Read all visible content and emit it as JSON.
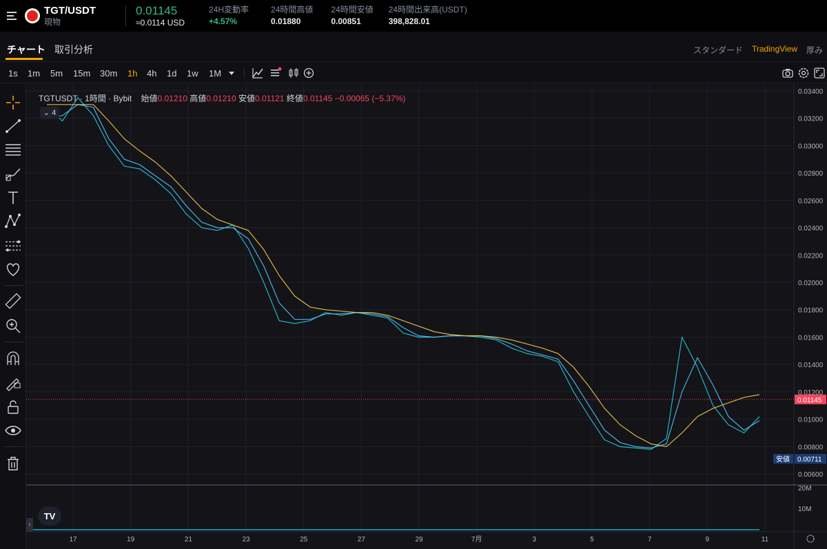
{
  "ticker": {
    "pair": "TGT/USDT",
    "type": "現物",
    "price": "0.01145",
    "price_usd": "≈0.0114 USD",
    "stats": [
      {
        "label": "24H変動率",
        "value": "+4.57%",
        "positive": true
      },
      {
        "label": "24時間高値",
        "value": "0.01880",
        "positive": false
      },
      {
        "label": "24時間安値",
        "value": "0.00851",
        "positive": false
      },
      {
        "label": "24時間出来高(USDT)",
        "value": "398,828.01",
        "positive": false
      }
    ]
  },
  "tabs": {
    "chart": "チャート",
    "analysis": "取引分析"
  },
  "views": {
    "standard": "スタンダード",
    "tradingview": "TradingView",
    "depth": "厚み"
  },
  "intervals": [
    "1s",
    "1m",
    "5m",
    "15m",
    "30m",
    "1h",
    "4h",
    "1d",
    "1w",
    "1M"
  ],
  "active_interval": "1h",
  "legend": {
    "symbol": "TGTUSDT · 1時間 · Bybit",
    "open_label": "始値",
    "open": "0.01210",
    "high_label": "高値",
    "high": "0.01210",
    "low_label": "安値",
    "low": "0.01121",
    "close_label": "終値",
    "close": "0.01145",
    "change": "−0.00065 (−5.37%)",
    "collapse_count": "4"
  },
  "chart_data": {
    "type": "line",
    "price_axis": [
      "0.03400",
      "0.03200",
      "0.03000",
      "0.02800",
      "0.02600",
      "0.02400",
      "0.02200",
      "0.02000",
      "0.01800",
      "0.01600",
      "0.01400",
      "0.01200",
      "0.01000",
      "0.00800",
      "0.00600"
    ],
    "ylim": [
      0.0052,
      0.0345
    ],
    "time_axis": [
      "17",
      "19",
      "21",
      "23",
      "25",
      "27",
      "29",
      "7月",
      "3",
      "5",
      "7",
      "9",
      "11"
    ],
    "last_price": "0.01145",
    "low_marker_label": "安値",
    "low_marker_value": "0.00711",
    "volume_axis": [
      "20M",
      "10M"
    ],
    "series": [
      {
        "color": "#26c6da",
        "values": [
          0.0328,
          0.0318,
          0.0335,
          0.0322,
          0.03,
          0.0285,
          0.0283,
          0.0275,
          0.0265,
          0.025,
          0.024,
          0.0238,
          0.0242,
          0.0225,
          0.02,
          0.0172,
          0.017,
          0.0172,
          0.0178,
          0.0176,
          0.0178,
          0.0176,
          0.0174,
          0.0163,
          0.016,
          0.016,
          0.0161,
          0.0161,
          0.016,
          0.0158,
          0.0152,
          0.0148,
          0.0146,
          0.0142,
          0.012,
          0.0102,
          0.0085,
          0.008,
          0.0079,
          0.0078,
          0.0086,
          0.016,
          0.0138,
          0.011,
          0.0096,
          0.009,
          0.0102
        ]
      },
      {
        "color": "#4fc3f7",
        "values": [
          0.032,
          0.0322,
          0.033,
          0.0328,
          0.0305,
          0.029,
          0.0286,
          0.0278,
          0.027,
          0.0256,
          0.0244,
          0.024,
          0.024,
          0.0232,
          0.0212,
          0.0185,
          0.0173,
          0.0173,
          0.0177,
          0.0177,
          0.0178,
          0.0177,
          0.0175,
          0.0167,
          0.0161,
          0.016,
          0.0161,
          0.0161,
          0.0161,
          0.0159,
          0.0155,
          0.015,
          0.0147,
          0.0144,
          0.0128,
          0.011,
          0.0092,
          0.0083,
          0.008,
          0.0079,
          0.0082,
          0.012,
          0.0145,
          0.0125,
          0.0102,
          0.0092,
          0.0099
        ]
      },
      {
        "color": "#f7c948",
        "values": [
          0.033,
          0.033,
          0.033,
          0.033,
          0.0318,
          0.0305,
          0.0296,
          0.0288,
          0.0278,
          0.0266,
          0.0254,
          0.0246,
          0.0242,
          0.0238,
          0.0224,
          0.0205,
          0.019,
          0.0182,
          0.018,
          0.0179,
          0.0178,
          0.0178,
          0.0176,
          0.0172,
          0.0168,
          0.0164,
          0.0162,
          0.0161,
          0.0161,
          0.016,
          0.0158,
          0.0155,
          0.0152,
          0.0148,
          0.0138,
          0.0124,
          0.0108,
          0.0096,
          0.0088,
          0.0082,
          0.008,
          0.009,
          0.0102,
          0.0108,
          0.0112,
          0.0116,
          0.0118
        ]
      }
    ]
  }
}
